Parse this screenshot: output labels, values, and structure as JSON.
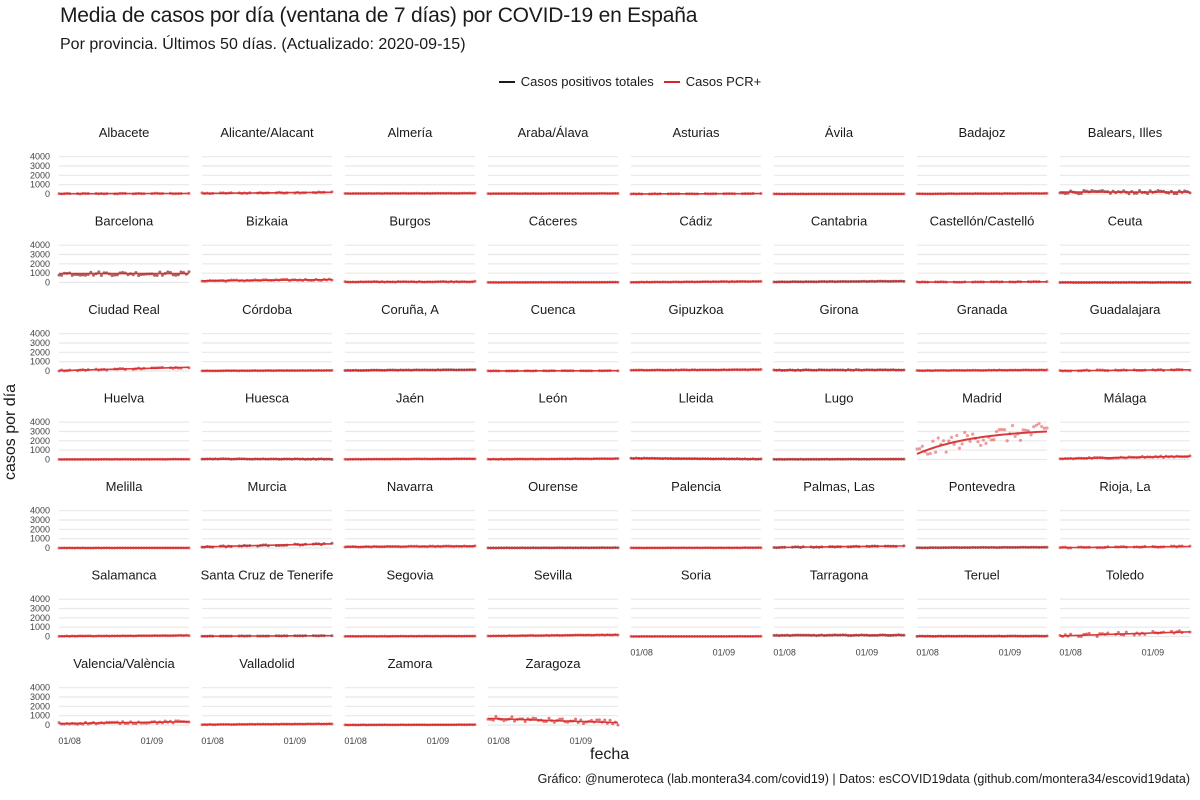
{
  "chart_data": {
    "type": "line",
    "title": "Media de casos por día (ventana de 7 días) por COVID-19 en España",
    "subtitle": "Por provincia. Últimos 50 días. (Actualizado: 2020-09-15)",
    "xlabel": "fecha",
    "ylabel": "casos por día",
    "caption": "Gráfico: @numeroteca (lab.montera34.com/covid19) | Datos: esCOVID19data (github.com/montera34/escovid19data)",
    "legend_position": "top",
    "colors": {
      "total": "#1a1a1a",
      "pcr": "#d62728",
      "dark_points": "#7a1a1a",
      "grid": "#e8e8e8"
    },
    "series": [
      {
        "name": "Casos positivos totales",
        "color": "#1a1a1a"
      },
      {
        "name": "Casos PCR+",
        "color": "#d62728"
      }
    ],
    "ylim": [
      0,
      4500
    ],
    "yticks": [
      0,
      1000,
      2000,
      3000,
      4000
    ],
    "xlim": [
      "2020-07-28",
      "2020-09-15"
    ],
    "xticks": [
      {
        "date": "2020-08-01",
        "label": "01/08"
      },
      {
        "date": "2020-09-01",
        "label": "01/09"
      }
    ],
    "grid": true,
    "facet_columns": 8,
    "panels": [
      {
        "name": "Albacete",
        "start": 25,
        "end": 60,
        "noise": 40,
        "style": "gappy"
      },
      {
        "name": "Alicante/Alacant",
        "start": 60,
        "end": 190,
        "noise": 60,
        "style": "gappy"
      },
      {
        "name": "Almería",
        "start": 50,
        "end": 80,
        "noise": 15,
        "style": "dense"
      },
      {
        "name": "Araba/Álava",
        "start": 40,
        "end": 60,
        "noise": 10,
        "style": "dense"
      },
      {
        "name": "Asturias",
        "start": 10,
        "end": 40,
        "noise": 20,
        "style": "gappy"
      },
      {
        "name": "Ávila",
        "start": 8,
        "end": 15,
        "noise": 5,
        "style": "dense"
      },
      {
        "name": "Badajoz",
        "start": 20,
        "end": 60,
        "noise": 15,
        "style": "dense"
      },
      {
        "name": "Balears, Illes",
        "start": 200,
        "end": 200,
        "noise": 180,
        "style": "dark"
      },
      {
        "name": "Barcelona",
        "start": 950,
        "end": 950,
        "noise": 220,
        "style": "dark"
      },
      {
        "name": "Bizkaia",
        "start": 180,
        "end": 300,
        "noise": 80,
        "style": "pcr"
      },
      {
        "name": "Burgos",
        "start": 60,
        "end": 90,
        "noise": 40,
        "style": "pcr"
      },
      {
        "name": "Cáceres",
        "start": 10,
        "end": 30,
        "noise": 8,
        "style": "dense"
      },
      {
        "name": "Cádiz",
        "start": 30,
        "end": 110,
        "noise": 20,
        "style": "dense"
      },
      {
        "name": "Cantabria",
        "start": 60,
        "end": 140,
        "noise": 20,
        "style": "darkdense"
      },
      {
        "name": "Castellón/Castelló",
        "start": 40,
        "end": 80,
        "noise": 30,
        "style": "gappy"
      },
      {
        "name": "Ceuta",
        "start": 5,
        "end": 10,
        "noise": 5,
        "style": "darkdense"
      },
      {
        "name": "Ciudad Real",
        "start": 40,
        "end": 400,
        "noise": 80,
        "style": "gappy"
      },
      {
        "name": "Córdoba",
        "start": 20,
        "end": 60,
        "noise": 15,
        "style": "dense"
      },
      {
        "name": "Coruña, A",
        "start": 60,
        "end": 140,
        "noise": 20,
        "style": "darkdense"
      },
      {
        "name": "Cuenca",
        "start": 10,
        "end": 30,
        "noise": 15,
        "style": "gappy"
      },
      {
        "name": "Gipuzkoa",
        "start": 80,
        "end": 150,
        "noise": 25,
        "style": "dense"
      },
      {
        "name": "Girona",
        "start": 90,
        "end": 120,
        "noise": 40,
        "style": "darkdense"
      },
      {
        "name": "Granada",
        "start": 40,
        "end": 110,
        "noise": 20,
        "style": "dense"
      },
      {
        "name": "Guadalajara",
        "start": 30,
        "end": 130,
        "noise": 60,
        "style": "gappy"
      },
      {
        "name": "Huelva",
        "start": 10,
        "end": 30,
        "noise": 8,
        "style": "dense"
      },
      {
        "name": "Huesca",
        "start": 60,
        "end": 40,
        "noise": 25,
        "style": "darkdense"
      },
      {
        "name": "Jaén",
        "start": 20,
        "end": 80,
        "noise": 15,
        "style": "dense"
      },
      {
        "name": "León",
        "start": 30,
        "end": 90,
        "noise": 20,
        "style": "dense"
      },
      {
        "name": "Lleida",
        "start": 130,
        "end": 40,
        "noise": 20,
        "style": "darkdense"
      },
      {
        "name": "Lugo",
        "start": 20,
        "end": 40,
        "noise": 10,
        "style": "darkdense"
      },
      {
        "name": "Madrid",
        "start": 600,
        "end": 3000,
        "noise": 900,
        "style": "madrid"
      },
      {
        "name": "Málaga",
        "start": 80,
        "end": 350,
        "noise": 80,
        "style": "pcr"
      },
      {
        "name": "Melilla",
        "start": 5,
        "end": 15,
        "noise": 5,
        "style": "dense"
      },
      {
        "name": "Murcia",
        "start": 120,
        "end": 450,
        "noise": 60,
        "style": "darkgappy"
      },
      {
        "name": "Navarra",
        "start": 120,
        "end": 200,
        "noise": 40,
        "style": "pcr"
      },
      {
        "name": "Ourense",
        "start": 10,
        "end": 30,
        "noise": 8,
        "style": "darkdense"
      },
      {
        "name": "Palencia",
        "start": 10,
        "end": 30,
        "noise": 8,
        "style": "dense"
      },
      {
        "name": "Palmas, Las",
        "start": 60,
        "end": 220,
        "noise": 40,
        "style": "darkgappy"
      },
      {
        "name": "Pontevedra",
        "start": 30,
        "end": 80,
        "noise": 15,
        "style": "darkdense"
      },
      {
        "name": "Rioja, La",
        "start": 40,
        "end": 160,
        "noise": 70,
        "style": "gappy"
      },
      {
        "name": "Salamanca",
        "start": 30,
        "end": 110,
        "noise": 20,
        "style": "dense"
      },
      {
        "name": "Santa Cruz de Tenerife",
        "start": 30,
        "end": 90,
        "noise": 15,
        "style": "darkgappy"
      },
      {
        "name": "Segovia",
        "start": 20,
        "end": 40,
        "noise": 10,
        "style": "dense"
      },
      {
        "name": "Sevilla",
        "start": 60,
        "end": 180,
        "noise": 25,
        "style": "dense"
      },
      {
        "name": "Soria",
        "start": 5,
        "end": 20,
        "noise": 5,
        "style": "dense"
      },
      {
        "name": "Tarragona",
        "start": 120,
        "end": 150,
        "noise": 40,
        "style": "darkdense"
      },
      {
        "name": "Teruel",
        "start": 30,
        "end": 40,
        "noise": 15,
        "style": "darkdense"
      },
      {
        "name": "Toledo",
        "start": 60,
        "end": 500,
        "noise": 200,
        "style": "gappy"
      },
      {
        "name": "Valencia/València",
        "start": 150,
        "end": 350,
        "noise": 120,
        "style": "pcr"
      },
      {
        "name": "Valladolid",
        "start": 40,
        "end": 120,
        "noise": 20,
        "style": "pcr"
      },
      {
        "name": "Zamora",
        "start": 10,
        "end": 30,
        "noise": 8,
        "style": "dense"
      },
      {
        "name": "Zaragoza",
        "start": 700,
        "end": 250,
        "noise": 250,
        "style": "pcr"
      }
    ]
  }
}
